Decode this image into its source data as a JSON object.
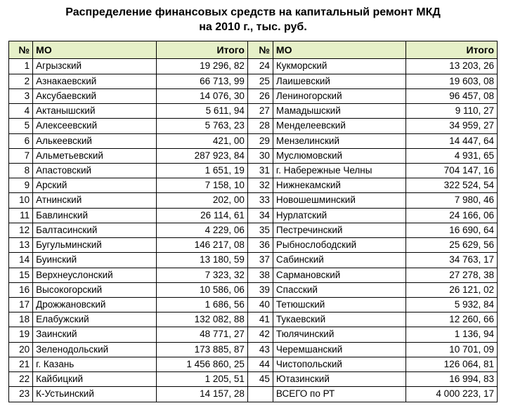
{
  "title_line1": "Распределение финансовых средств на капитальный ремонт МКД",
  "title_line2": "на 2010 г., тыс. руб.",
  "headers": {
    "num": "№",
    "mo": "МО",
    "total": "Итого"
  },
  "left": [
    {
      "n": "1",
      "name": "Агрызский",
      "total": "19 296, 82"
    },
    {
      "n": "2",
      "name": "Азнакаевский",
      "total": "66 713, 99"
    },
    {
      "n": "3",
      "name": "Аксубаевский",
      "total": "14 076, 30"
    },
    {
      "n": "4",
      "name": "Актанышский",
      "total": "5 611, 94"
    },
    {
      "n": "5",
      "name": "Алексеевский",
      "total": "5 763, 23"
    },
    {
      "n": "6",
      "name": "Алькеевский",
      "total": "421, 00"
    },
    {
      "n": "7",
      "name": "Альметьевский",
      "total": "287 923, 84"
    },
    {
      "n": "8",
      "name": "Апастовский",
      "total": "1 651, 19"
    },
    {
      "n": "9",
      "name": "Арский",
      "total": "7 158, 10"
    },
    {
      "n": "10",
      "name": "Атнинский",
      "total": "202, 00"
    },
    {
      "n": "11",
      "name": "Бавлинский",
      "total": "26 114, 61"
    },
    {
      "n": "12",
      "name": "Балтасинский",
      "total": "4 229, 06"
    },
    {
      "n": "13",
      "name": "Бугульминский",
      "total": "146 217, 08"
    },
    {
      "n": "14",
      "name": "Буинский",
      "total": "13 180, 59"
    },
    {
      "n": "15",
      "name": "Верхнеуслонский",
      "total": "7 323, 32"
    },
    {
      "n": "16",
      "name": "Высокогорский",
      "total": "10 586, 06"
    },
    {
      "n": "17",
      "name": "Дрожжановский",
      "total": "1 686, 56"
    },
    {
      "n": "18",
      "name": "Елабужский",
      "total": "132 082, 88"
    },
    {
      "n": "19",
      "name": "Заинский",
      "total": "48 771, 27"
    },
    {
      "n": "20",
      "name": "Зеленодольский",
      "total": "173 885, 87"
    },
    {
      "n": "21",
      "name": "г. Казань",
      "total": "1 456 860, 25"
    },
    {
      "n": "22",
      "name": "Кайбицкий",
      "total": "1 205, 51"
    },
    {
      "n": "23",
      "name": "К-Устьинский",
      "total": "14 157, 28"
    }
  ],
  "right": [
    {
      "n": "24",
      "name": "Кукморский",
      "total": "13 203, 26"
    },
    {
      "n": "25",
      "name": "Лаишевский",
      "total": "19 603, 08"
    },
    {
      "n": "26",
      "name": "Лениногорский",
      "total": "96 457, 08"
    },
    {
      "n": "27",
      "name": "Мамадышский",
      "total": "9 110, 27"
    },
    {
      "n": "28",
      "name": "Менделеевский",
      "total": "34 959, 27"
    },
    {
      "n": "29",
      "name": "Мензелинский",
      "total": "14 447, 64"
    },
    {
      "n": "30",
      "name": "Муслюмовский",
      "total": "4 931, 65"
    },
    {
      "n": "31",
      "name": "г. Набережные Челны",
      "total": "704 147, 16"
    },
    {
      "n": "32",
      "name": "Нижнекамский",
      "total": "322 524, 54"
    },
    {
      "n": "33",
      "name": "Новошешминский",
      "total": "7 980, 46"
    },
    {
      "n": "34",
      "name": "Нурлатский",
      "total": "24 166, 06"
    },
    {
      "n": "35",
      "name": "Пестречинский",
      "total": "16 690, 64"
    },
    {
      "n": "36",
      "name": "Рыбнослободский",
      "total": "25 629, 56"
    },
    {
      "n": "37",
      "name": "Сабинский",
      "total": "34 763, 17"
    },
    {
      "n": "38",
      "name": "Сармановский",
      "total": "27 278, 38"
    },
    {
      "n": "39",
      "name": "Спасский",
      "total": "26 121, 02"
    },
    {
      "n": "40",
      "name": "Тетюшский",
      "total": "5 932, 84"
    },
    {
      "n": "41",
      "name": "Тукаевский",
      "total": "12 260, 66"
    },
    {
      "n": "42",
      "name": "Тюлячинский",
      "total": "1 136, 94"
    },
    {
      "n": "43",
      "name": "Черемшанский",
      "total": "10 701, 09"
    },
    {
      "n": "44",
      "name": "Чистопольский",
      "total": "126 064, 81"
    },
    {
      "n": "45",
      "name": "Ютазинский",
      "total": "16 994, 83"
    },
    {
      "n": "",
      "name": "ВСЕГО по РТ",
      "total": "4 000 223, 17"
    }
  ],
  "colors": {
    "header_bg": "#e6f0c8",
    "border": "#000000",
    "background": "#ffffff"
  }
}
